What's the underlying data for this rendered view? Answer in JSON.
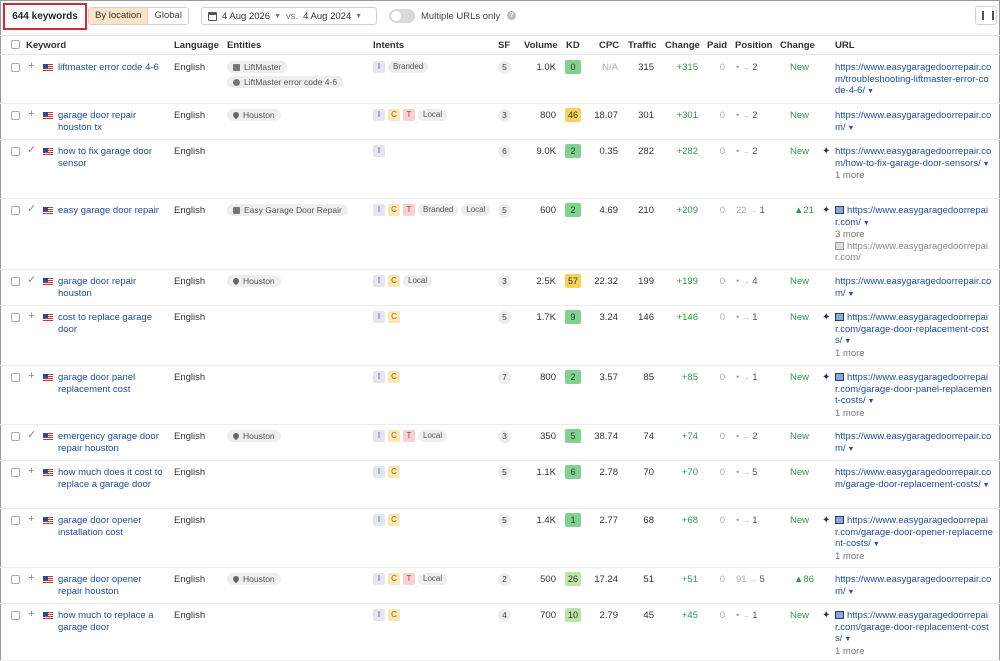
{
  "toolbar": {
    "keyword_count": "644 keywords",
    "by_location": "By location",
    "global": "Global",
    "date_from": "4 Aug 2026",
    "vs": "vs.",
    "date_to": "4 Aug 2024",
    "multiple_urls": "Multiple URLs only"
  },
  "columns": {
    "keyword": "Keyword",
    "language": "Language",
    "entities": "Entities",
    "intents": "Intents",
    "sf": "SF",
    "volume": "Volume",
    "kd": "KD",
    "cpc": "CPC",
    "traffic": "Traffic",
    "change": "Change",
    "paid": "Paid",
    "position": "Position",
    "pos_change": "Change",
    "url": "URL"
  },
  "colors": {
    "kd_green": "#7fd38f",
    "kd_yellow": "#f7d25a",
    "kd_lightgreen": "#b9e6a8",
    "link": "#1f4fa0",
    "positive": "#2e9a4a"
  },
  "rows": [
    {
      "action": "+",
      "keyword": "liftmaster error code 4-6",
      "language": "English",
      "entities": [
        {
          "icon": "building-icon",
          "label": "LiftMaster"
        },
        {
          "icon": "gear-icon",
          "label": "LiftMaster error code 4-6"
        }
      ],
      "intents": [
        "I",
        "Branded"
      ],
      "sf": "5",
      "volume": "1.0K",
      "kd": "0",
      "kd_color": "#7fd38f",
      "cpc": "N/A",
      "traffic": "315",
      "change": "+315",
      "paid": "0",
      "pos_from": "",
      "pos_to": "2",
      "pos_change": "New",
      "url_icon": "",
      "url": "https://www.easygaragedoorrepair.com/troubleshooting-liftmaster-error-code-4-6/",
      "more": "",
      "url2": ""
    },
    {
      "action": "+",
      "keyword": "garage door repair houston tx",
      "language": "English",
      "entities": [
        {
          "icon": "location-pin-icon",
          "label": "Houston"
        }
      ],
      "intents": [
        "I",
        "C",
        "T",
        "Local"
      ],
      "sf": "3",
      "volume": "800",
      "kd": "46",
      "kd_color": "#f7d25a",
      "cpc": "18.07",
      "traffic": "301",
      "change": "+301",
      "paid": "0",
      "pos_from": "",
      "pos_to": "2",
      "pos_change": "New",
      "url_icon": "",
      "url": "https://www.easygaragedoorrepair.com/",
      "more": "",
      "url2": ""
    },
    {
      "action": "✓",
      "keyword": "how to fix garage door sensor",
      "language": "English",
      "entities": [],
      "intents": [
        "I"
      ],
      "sf": "6",
      "volume": "9.0K",
      "kd": "2",
      "kd_color": "#7fd38f",
      "cpc": "0.35",
      "traffic": "282",
      "change": "+282",
      "paid": "0",
      "pos_from": "",
      "pos_to": "2",
      "pos_change": "New",
      "url_icon": "spark",
      "url": "https://www.easygaragedoorrepair.com/how-to-fix-garage-door-sensors/",
      "more": "1 more",
      "url2": ""
    },
    {
      "action": "✓",
      "keyword": "easy garage door repair",
      "language": "English",
      "entities": [
        {
          "icon": "building-icon",
          "label": "Easy Garage Door Repair"
        }
      ],
      "intents": [
        "I",
        "C",
        "T",
        "Branded",
        "Local"
      ],
      "sf": "5",
      "volume": "600",
      "kd": "2",
      "kd_color": "#7fd38f",
      "cpc": "4.69",
      "traffic": "210",
      "change": "+209",
      "paid": "0",
      "pos_from": "22",
      "pos_to": "1",
      "pos_change": "▲21",
      "url_icon": "spark-image",
      "url": "https://www.easygaragedoorrepair.com/",
      "more": "3 more",
      "url2": "https://www.easygaragedoorrepair.com/"
    },
    {
      "action": "✓",
      "keyword": "garage door repair houston",
      "language": "English",
      "entities": [
        {
          "icon": "location-pin-icon",
          "label": "Houston"
        }
      ],
      "intents": [
        "I",
        "C",
        "Local"
      ],
      "sf": "3",
      "volume": "2.5K",
      "kd": "57",
      "kd_color": "#f7d25a",
      "cpc": "22.32",
      "traffic": "199",
      "change": "+199",
      "paid": "0",
      "pos_from": "",
      "pos_to": "4",
      "pos_change": "New",
      "url_icon": "",
      "url": "https://www.easygaragedoorrepair.com/",
      "more": "",
      "url2": ""
    },
    {
      "action": "+",
      "keyword": "cost to replace garage door",
      "language": "English",
      "entities": [],
      "intents": [
        "I",
        "C"
      ],
      "sf": "5",
      "volume": "1.7K",
      "kd": "9",
      "kd_color": "#7fd38f",
      "cpc": "3.24",
      "traffic": "146",
      "change": "+146",
      "paid": "0",
      "pos_from": "",
      "pos_to": "1",
      "pos_change": "New",
      "url_icon": "spark-image",
      "url": "https://www.easygaragedoorrepair.com/garage-door-replacement-costs/",
      "more": "1 more",
      "url2": ""
    },
    {
      "action": "+",
      "keyword": "garage door panel replacement cost",
      "language": "English",
      "entities": [],
      "intents": [
        "I",
        "C"
      ],
      "sf": "7",
      "volume": "800",
      "kd": "2",
      "kd_color": "#7fd38f",
      "cpc": "3.57",
      "traffic": "85",
      "change": "+85",
      "paid": "0",
      "pos_from": "",
      "pos_to": "1",
      "pos_change": "New",
      "url_icon": "spark-image",
      "url": "https://www.easygaragedoorrepair.com/garage-door-panel-replacement-costs/",
      "more": "1 more",
      "url2": ""
    },
    {
      "action": "✓",
      "keyword": "emergency garage door repair houston",
      "language": "English",
      "entities": [
        {
          "icon": "location-pin-icon",
          "label": "Houston"
        }
      ],
      "intents": [
        "I",
        "C",
        "T",
        "Local"
      ],
      "sf": "3",
      "volume": "350",
      "kd": "5",
      "kd_color": "#7fd38f",
      "cpc": "38.74",
      "traffic": "74",
      "change": "+74",
      "paid": "0",
      "pos_from": "",
      "pos_to": "2",
      "pos_change": "New",
      "url_icon": "",
      "url": "https://www.easygaragedoorrepair.com/",
      "more": "",
      "url2": ""
    },
    {
      "action": "+",
      "keyword": "how much does it cost to replace a garage door",
      "language": "English",
      "entities": [],
      "intents": [
        "I",
        "C"
      ],
      "sf": "5",
      "volume": "1.1K",
      "kd": "6",
      "kd_color": "#7fd38f",
      "cpc": "2.78",
      "traffic": "70",
      "change": "+70",
      "paid": "0",
      "pos_from": "",
      "pos_to": "5",
      "pos_change": "New",
      "url_icon": "",
      "url": "https://www.easygaragedoorrepair.com/garage-door-replacement-costs/",
      "more": "",
      "url2": ""
    },
    {
      "action": "+",
      "keyword": "garage door opener installation cost",
      "language": "English",
      "entities": [],
      "intents": [
        "I",
        "C"
      ],
      "sf": "5",
      "volume": "1.4K",
      "kd": "1",
      "kd_color": "#7fd38f",
      "cpc": "2.77",
      "traffic": "68",
      "change": "+68",
      "paid": "0",
      "pos_from": "",
      "pos_to": "1",
      "pos_change": "New",
      "url_icon": "spark-image",
      "url": "https://www.easygaragedoorrepair.com/garage-door-opener-replacement-costs/",
      "more": "1 more",
      "url2": ""
    },
    {
      "action": "+",
      "keyword": "garage door opener repair houston",
      "language": "English",
      "entities": [
        {
          "icon": "location-pin-icon",
          "label": "Houston"
        }
      ],
      "intents": [
        "I",
        "C",
        "T",
        "Local"
      ],
      "sf": "2",
      "volume": "500",
      "kd": "26",
      "kd_color": "#b9e6a8",
      "cpc": "17.24",
      "traffic": "51",
      "change": "+51",
      "paid": "0",
      "pos_from": "91",
      "pos_to": "5",
      "pos_change": "▲86",
      "url_icon": "",
      "url": "https://www.easygaragedoorrepair.com/",
      "more": "",
      "url2": ""
    },
    {
      "action": "+",
      "keyword": "how much to replace a garage door",
      "language": "English",
      "entities": [],
      "intents": [
        "I",
        "C"
      ],
      "sf": "4",
      "volume": "700",
      "kd": "10",
      "kd_color": "#b9e6a8",
      "cpc": "2.79",
      "traffic": "45",
      "change": "+45",
      "paid": "0",
      "pos_from": "",
      "pos_to": "1",
      "pos_change": "New",
      "url_icon": "spark-image",
      "url": "https://www.easygaragedoorrepair.com/garage-door-replacement-costs/",
      "more": "1 more",
      "url2": ""
    }
  ]
}
